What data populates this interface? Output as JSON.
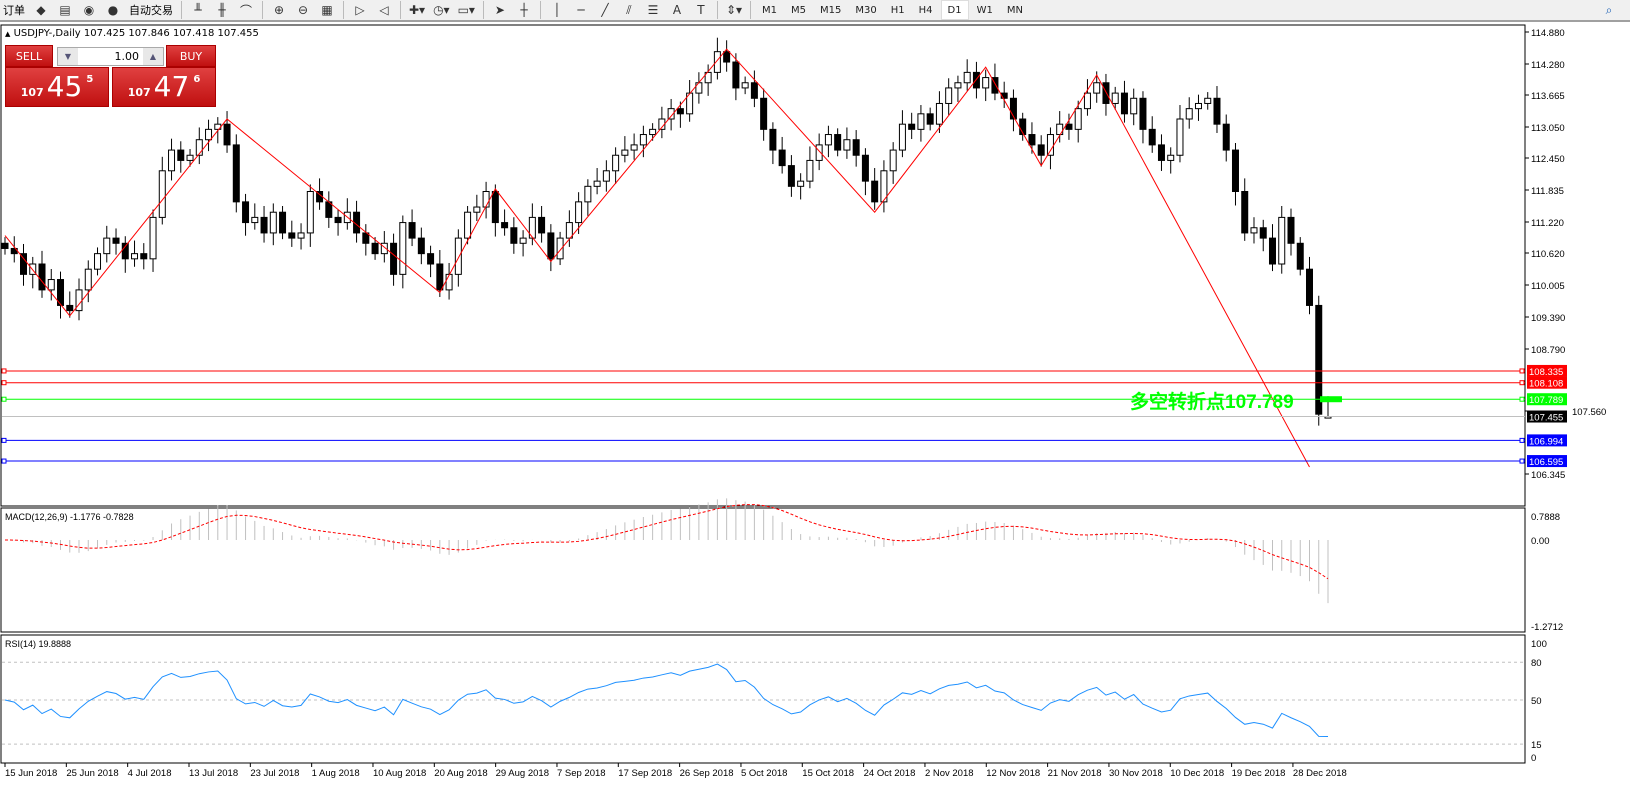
{
  "toolbar": {
    "items": [
      {
        "name": "new-order-label",
        "label": "订单"
      },
      {
        "name": "history-icon",
        "label": "◆"
      },
      {
        "name": "terminal-icon",
        "label": "▤"
      },
      {
        "name": "signals-icon",
        "label": "◉"
      },
      {
        "name": "autotrading-icon",
        "label": "●"
      },
      {
        "name": "autotrading-label",
        "label": "自动交易"
      },
      {
        "name": "bar-chart-icon",
        "label": "╨"
      },
      {
        "name": "candle-chart-icon",
        "label": "╫"
      },
      {
        "name": "line-chart-icon",
        "label": "⌒"
      },
      {
        "name": "zoom-in-icon",
        "label": "⊕"
      },
      {
        "name": "zoom-out-icon",
        "label": "⊖"
      },
      {
        "name": "tile-windows-icon",
        "label": "▦"
      },
      {
        "name": "autoscroll-icon",
        "label": "▷"
      },
      {
        "name": "chart-shift-icon",
        "label": "◁"
      },
      {
        "name": "indicators-icon",
        "label": "✚▾"
      },
      {
        "name": "periods-icon",
        "label": "◷▾"
      },
      {
        "name": "templates-icon",
        "label": "▭▾"
      },
      {
        "name": "cursor-icon",
        "label": "➤"
      },
      {
        "name": "crosshair-icon",
        "label": "┼"
      },
      {
        "name": "vertical-line-icon",
        "label": "│"
      },
      {
        "name": "horizontal-line-icon",
        "label": "─"
      },
      {
        "name": "trendline-icon",
        "label": "╱"
      },
      {
        "name": "equidistant-channel-icon",
        "label": "⫽"
      },
      {
        "name": "fibonacci-icon",
        "label": "☰"
      },
      {
        "name": "text-icon",
        "label": "A"
      },
      {
        "name": "text-label-icon",
        "label": "T"
      },
      {
        "name": "arrows-icon",
        "label": "⇕▾"
      }
    ],
    "timeframes": [
      "M1",
      "M5",
      "M15",
      "M30",
      "H1",
      "H4",
      "D1",
      "W1",
      "MN"
    ],
    "active_timeframe": "D1",
    "search_icon": "⌕"
  },
  "chart": {
    "header": "USDJPY-,Daily  107.425 107.846 107.418 107.455",
    "collapse_icon": "▲"
  },
  "trade_panel": {
    "sell_label": "SELL",
    "buy_label": "BUY",
    "lot": "1.00",
    "sell_price": {
      "big": "107",
      "main": "45",
      "small": "5"
    },
    "buy_price": {
      "big": "107",
      "main": "47",
      "small": "6"
    }
  },
  "chart_data": {
    "type": "candlestick",
    "symbol": "USDJPY-",
    "timeframe": "Daily",
    "y_ticks": [
      "114.880",
      "114.280",
      "113.665",
      "113.050",
      "112.450",
      "111.835",
      "111.220",
      "110.620",
      "110.005",
      "109.390",
      "108.790",
      "107.560",
      "106.345"
    ],
    "ylim": [
      106.345,
      114.88
    ],
    "x_labels": [
      "15 Jun 2018",
      "25 Jun 2018",
      "4 Jul 2018",
      "13 Jul 2018",
      "23 Jul 2018",
      "1 Aug 2018",
      "10 Aug 2018",
      "20 Aug 2018",
      "29 Aug 2018",
      "7 Sep 2018",
      "17 Sep 2018",
      "26 Sep 2018",
      "5 Oct 2018",
      "15 Oct 2018",
      "24 Oct 2018",
      "2 Nov 2018",
      "12 Nov 2018",
      "21 Nov 2018",
      "30 Nov 2018",
      "10 Dec 2018",
      "19 Dec 2018",
      "28 Dec 2018"
    ],
    "closes": [
      110.7,
      110.6,
      110.2,
      110.4,
      109.9,
      110.1,
      109.6,
      109.5,
      109.9,
      110.3,
      110.6,
      110.9,
      110.8,
      110.5,
      110.6,
      110.5,
      111.3,
      112.2,
      112.6,
      112.4,
      112.5,
      112.8,
      113.0,
      113.1,
      112.7,
      111.6,
      111.2,
      111.3,
      111.0,
      111.4,
      111.0,
      110.9,
      111.0,
      111.8,
      111.6,
      111.3,
      111.2,
      111.4,
      111.0,
      110.8,
      110.6,
      110.8,
      110.2,
      111.2,
      110.9,
      110.6,
      110.4,
      109.9,
      110.2,
      110.9,
      111.4,
      111.5,
      111.8,
      111.2,
      111.1,
      110.8,
      110.9,
      111.3,
      111.0,
      110.5,
      110.9,
      111.2,
      111.6,
      111.9,
      112.0,
      112.2,
      112.5,
      112.6,
      112.7,
      112.9,
      113.0,
      113.2,
      113.4,
      113.3,
      113.7,
      113.9,
      114.1,
      114.5,
      114.3,
      113.8,
      113.9,
      113.6,
      113.0,
      112.6,
      112.3,
      111.9,
      112.0,
      112.4,
      112.7,
      112.9,
      112.6,
      112.8,
      112.5,
      112.0,
      111.6,
      112.2,
      112.6,
      113.1,
      113.0,
      113.3,
      113.1,
      113.5,
      113.8,
      113.9,
      114.1,
      113.8,
      114.0,
      113.7,
      113.6,
      113.2,
      112.9,
      112.7,
      112.5,
      112.9,
      113.1,
      113.0,
      113.4,
      113.7,
      113.9,
      113.5,
      113.7,
      113.3,
      113.6,
      113.0,
      112.7,
      112.4,
      112.5,
      113.2,
      113.4,
      113.5,
      113.6,
      113.1,
      112.6,
      111.8,
      111.0,
      111.1,
      110.9,
      110.4,
      111.3,
      110.8,
      110.3,
      109.6,
      107.5,
      107.455
    ],
    "last_bar": {
      "open": 107.425,
      "high": 107.846,
      "low": 107.418,
      "close": 107.455
    },
    "zigzag": [
      [
        0,
        110.95
      ],
      [
        7,
        109.4
      ],
      [
        24,
        113.2
      ],
      [
        47,
        109.85
      ],
      [
        53,
        111.85
      ],
      [
        59,
        110.45
      ],
      [
        78,
        114.55
      ],
      [
        94,
        111.4
      ],
      [
        106,
        114.2
      ],
      [
        112,
        112.3
      ],
      [
        118,
        114.05
      ],
      [
        141,
        106.48
      ]
    ],
    "levels": [
      {
        "price": "108.335",
        "color": "#ff0000"
      },
      {
        "price": "108.108",
        "color": "#ff0000"
      },
      {
        "price": "107.789",
        "color": "#00ff00"
      },
      {
        "price": "106.994",
        "color": "#0000ff"
      },
      {
        "price": "106.595",
        "color": "#0000ff"
      }
    ],
    "current_price": {
      "price": "107.455",
      "color": "#000000"
    },
    "annotation": {
      "text": "多空转折点107.789",
      "color": "#00ff00"
    },
    "macd": {
      "label": "MACD(12,26,9) -1.1776 -0.7828",
      "ticks": [
        "0.7888",
        "0.00",
        "-1.2712"
      ],
      "ylim": [
        -1.2712,
        0.7888
      ]
    },
    "rsi": {
      "label": "RSI(14) 19.8888",
      "ticks": [
        "100",
        "80",
        "50",
        "15",
        "0"
      ],
      "levels": [
        80,
        50,
        15
      ],
      "color": "#1e90ff"
    }
  }
}
